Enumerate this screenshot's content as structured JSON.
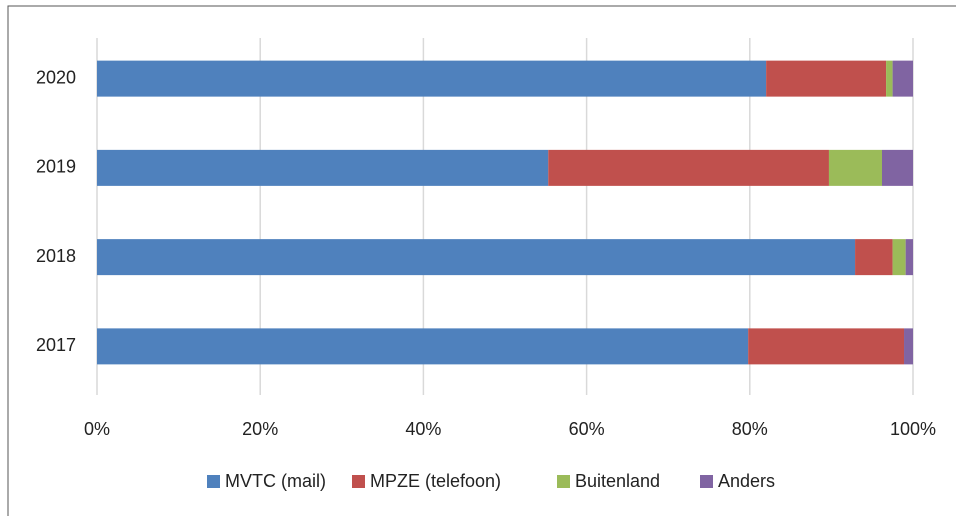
{
  "chart_data": {
    "type": "stacked_bar_horizontal",
    "categories": [
      "2020",
      "2019",
      "2018",
      "2017"
    ],
    "series": [
      {
        "name": "MVTC (mail)",
        "color": "#4f81bd",
        "values": [
          82.0,
          55.3,
          92.9,
          79.8
        ]
      },
      {
        "name": "MPZE (telefoon)",
        "color": "#c0504d",
        "values": [
          14.7,
          34.4,
          4.6,
          19.1
        ]
      },
      {
        "name": "Buitenland",
        "color": "#9bbb59",
        "values": [
          0.8,
          6.5,
          1.6,
          0
        ]
      },
      {
        "name": "Anders",
        "color": "#8064a2",
        "values": [
          2.5,
          3.8,
          0.9,
          1.1
        ]
      }
    ],
    "xlim": [
      0,
      100
    ],
    "xticks": [
      {
        "value": 0,
        "label": "0%"
      },
      {
        "value": 20,
        "label": "20%"
      },
      {
        "value": 40,
        "label": "40%"
      },
      {
        "value": 60,
        "label": "60%"
      },
      {
        "value": 80,
        "label": "80%"
      },
      {
        "value": 100,
        "label": "100%"
      }
    ],
    "grid": true,
    "legend": "bottom"
  }
}
